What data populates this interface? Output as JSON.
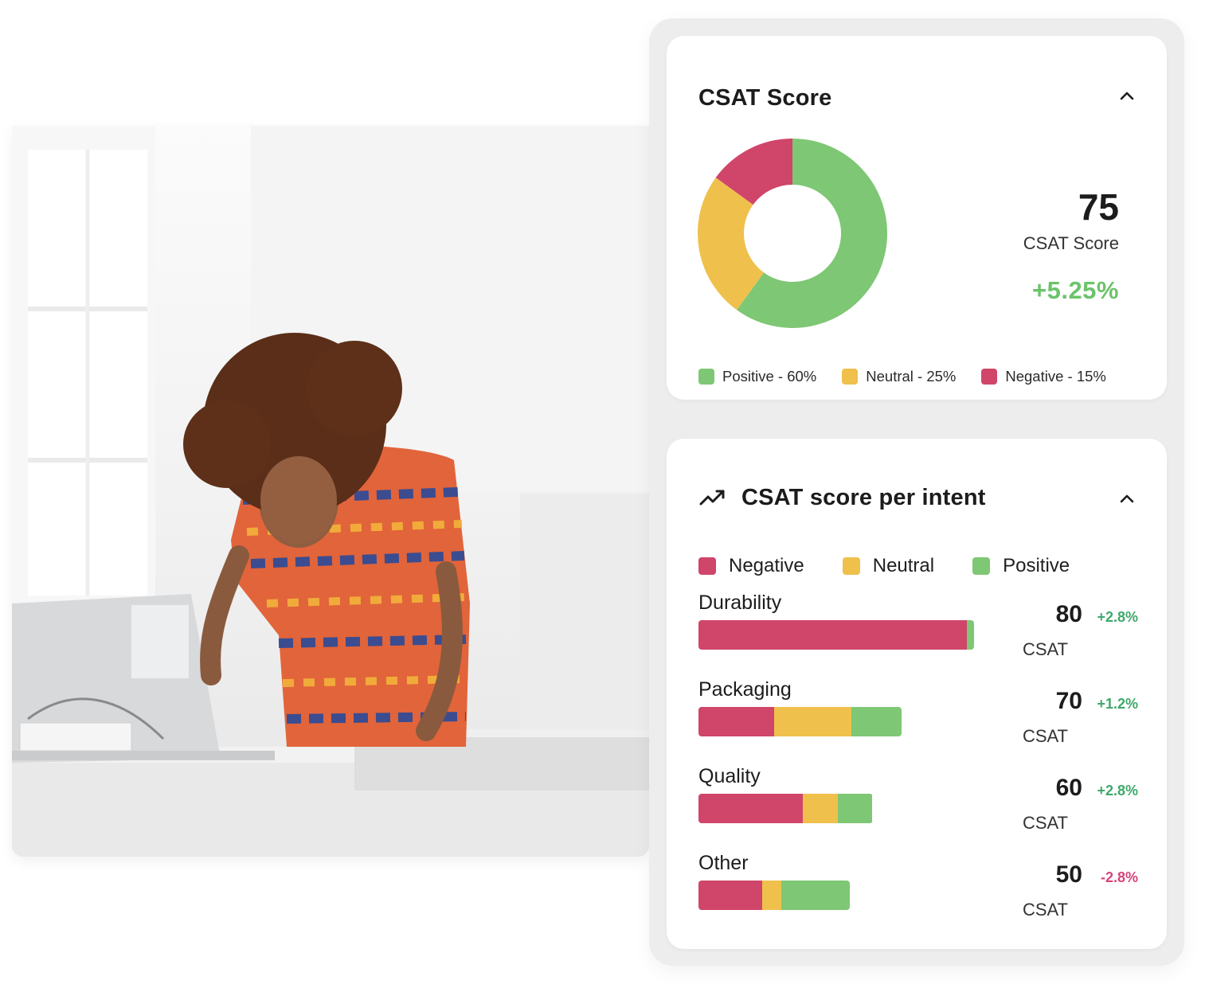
{
  "colors": {
    "positive": "#7ec774",
    "neutral": "#f0c04c",
    "negative": "#d0456a",
    "delta_up": "#3fa86b",
    "delta_down": "#d6457a"
  },
  "csat_card": {
    "title": "CSAT Score",
    "collapse_icon": "chevron-up-icon",
    "score": "75",
    "score_label": "CSAT Score",
    "delta": "+5.25%",
    "legend": [
      {
        "label": "Positive - 60%",
        "color": "#7ec774"
      },
      {
        "label": "Neutral - 25%",
        "color": "#f0c04c"
      },
      {
        "label": "Negative - 15%",
        "color": "#d0456a"
      }
    ]
  },
  "intent_card": {
    "title": "CSAT score per intent",
    "title_icon": "trending-up-icon",
    "collapse_icon": "chevron-up-icon",
    "legend": [
      {
        "label": "Negative",
        "color": "#d0456a"
      },
      {
        "label": "Neutral",
        "color": "#f0c04c"
      },
      {
        "label": "Positive",
        "color": "#7ec774"
      }
    ],
    "rows": [
      {
        "label": "Durability",
        "score": "80",
        "delta": "+2.8%",
        "delta_dir": "up",
        "csat_label": "CSAT",
        "total": 0.91,
        "segments": [
          0.975,
          0.0,
          0.025
        ]
      },
      {
        "label": "Packaging",
        "score": "70",
        "delta": "+1.2%",
        "delta_dir": "up",
        "csat_label": "CSAT",
        "total": 0.67,
        "segments": [
          0.375,
          0.38,
          0.245
        ]
      },
      {
        "label": "Quality",
        "score": "60",
        "delta": "+2.8%",
        "delta_dir": "up",
        "csat_label": "CSAT",
        "total": 0.575,
        "segments": [
          0.6,
          0.2,
          0.2
        ]
      },
      {
        "label": "Other",
        "score": "50",
        "delta": "-2.8%",
        "delta_dir": "down",
        "csat_label": "CSAT",
        "total": 0.5,
        "segments": [
          0.42,
          0.13,
          0.45
        ]
      }
    ]
  },
  "chart_data": {
    "type": "pie",
    "title": "CSAT Score",
    "categories": [
      "Positive",
      "Neutral",
      "Negative"
    ],
    "values": [
      60,
      25,
      15
    ],
    "colors": [
      "#7ec774",
      "#f0c04c",
      "#d0456a"
    ],
    "legend": "bottom"
  }
}
